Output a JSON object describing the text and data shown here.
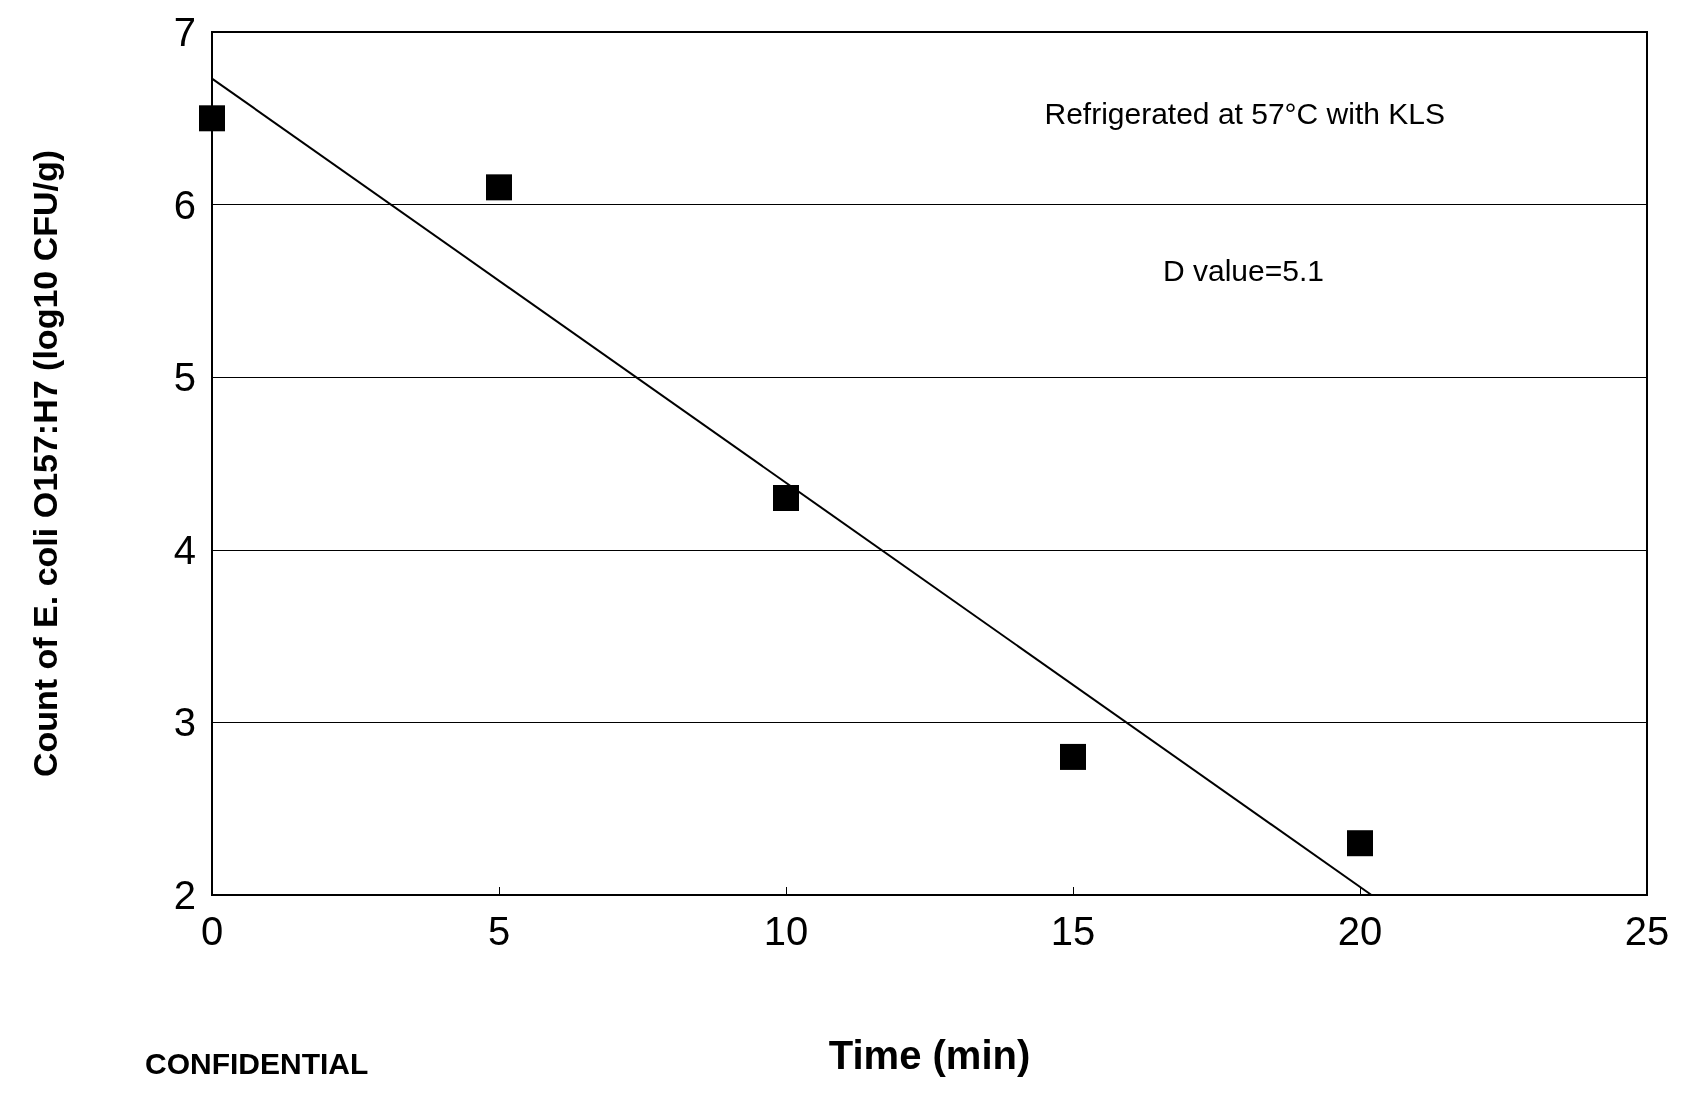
{
  "chart_data": {
    "type": "scatter",
    "xlabel": "Time (min)",
    "ylabel": "Count of E. coli O157:H7 (log10 CFU/g)",
    "xlim": [
      0,
      25
    ],
    "xticks": [
      0,
      5,
      10,
      15,
      20,
      25
    ],
    "ylim": [
      2,
      7
    ],
    "yticks": [
      2,
      3,
      4,
      5,
      6,
      7
    ],
    "grid": "y",
    "marker": "square",
    "series": [
      {
        "color": "#000000",
        "x": [
          0,
          5,
          10,
          15,
          20
        ],
        "values": [
          6.5,
          6.1,
          4.3,
          2.8,
          2.3
        ]
      },
      {
        "type": "line",
        "color": "#000000",
        "marker": "none",
        "line_style": "solid",
        "x": [
          0,
          20.2
        ],
        "values": [
          6.73,
          2.0
        ]
      }
    ],
    "annotations": [
      "Refrigerated at 57°C with KLS",
      "D value=5.1",
      "CONFIDENTIAL"
    ]
  }
}
